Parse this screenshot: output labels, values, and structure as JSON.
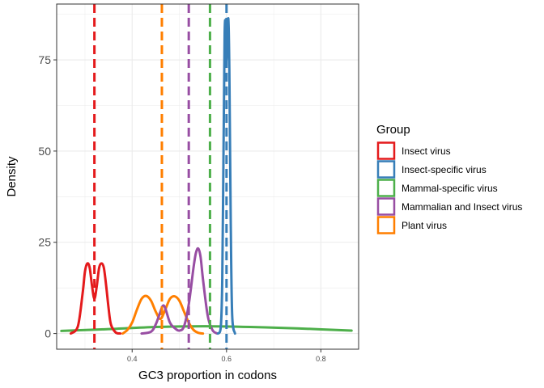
{
  "chart_data": {
    "type": "line",
    "title": "",
    "xlabel": "GC3 proportion in codons",
    "ylabel": "Density",
    "xlim": [
      0.24,
      0.88
    ],
    "ylim": [
      -4.3,
      90.3
    ],
    "x_ticks": [
      0.4,
      0.6,
      0.8
    ],
    "x_tick_labels": [
      "0.4",
      "0.6",
      "0.8"
    ],
    "y_ticks": [
      0,
      25,
      50,
      75
    ],
    "y_tick_labels": [
      "0",
      "25",
      "50",
      "75"
    ],
    "grid": true,
    "legend": {
      "title": "Group",
      "placement": "right",
      "entries": [
        "Insect virus",
        "Insect-specific virus",
        "Mammal-specific virus",
        "Mammalian and Insect virus",
        "Plant virus"
      ]
    },
    "series": [
      {
        "name": "Insect virus",
        "color": "#e41a1c",
        "mean_line": 0.32,
        "x": [
          0.27,
          0.285,
          0.295,
          0.3,
          0.305,
          0.31,
          0.315,
          0.32,
          0.325,
          0.33,
          0.335,
          0.34,
          0.345,
          0.35,
          0.355,
          0.365,
          0.375
        ],
        "y": [
          0,
          2,
          11,
          17,
          19.2,
          18,
          13,
          9.5,
          13,
          18,
          19.2,
          18,
          13,
          7,
          2.5,
          0.3,
          0
        ]
      },
      {
        "name": "Insect-specific virus",
        "color": "#377eb8",
        "mean_line": 0.6,
        "x": [
          0.582,
          0.588,
          0.591,
          0.594,
          0.596,
          0.598,
          0.6,
          0.602,
          0.604,
          0.606,
          0.609,
          0.612,
          0.618
        ],
        "y": [
          0,
          2,
          15,
          55,
          82,
          85,
          75,
          82,
          86,
          72,
          30,
          5,
          0
        ]
      },
      {
        "name": "Mammal-specific virus",
        "color": "#4daf4a",
        "mean_line": 0.565,
        "x": [
          0.25,
          0.35,
          0.45,
          0.55,
          0.65,
          0.75,
          0.865
        ],
        "y": [
          0.7,
          1.2,
          1.8,
          2,
          1.8,
          1.4,
          0.8
        ]
      },
      {
        "name": "Mammalian and Insect virus",
        "color": "#984ea3",
        "mean_line": 0.52,
        "x": [
          0.42,
          0.44,
          0.45,
          0.46,
          0.465,
          0.47,
          0.48,
          0.49,
          0.5,
          0.51,
          0.52,
          0.53,
          0.535,
          0.54,
          0.545,
          0.55,
          0.56,
          0.57,
          0.58
        ],
        "y": [
          0,
          0.5,
          2.5,
          6,
          7.6,
          7,
          3,
          1.5,
          0.8,
          2,
          8,
          18,
          22,
          23.3,
          21,
          15,
          5,
          1,
          0
        ]
      },
      {
        "name": "Plant virus",
        "color": "#ff7f00",
        "mean_line": 0.463,
        "x": [
          0.38,
          0.39,
          0.4,
          0.41,
          0.42,
          0.43,
          0.44,
          0.45,
          0.46,
          0.47,
          0.48,
          0.49,
          0.5,
          0.51,
          0.52,
          0.53,
          0.54,
          0.55
        ],
        "y": [
          0,
          1,
          3,
          6.5,
          9.5,
          10.3,
          9,
          6,
          4,
          6.5,
          9.5,
          10.2,
          9,
          6,
          3,
          1,
          0.2,
          0
        ]
      }
    ]
  }
}
